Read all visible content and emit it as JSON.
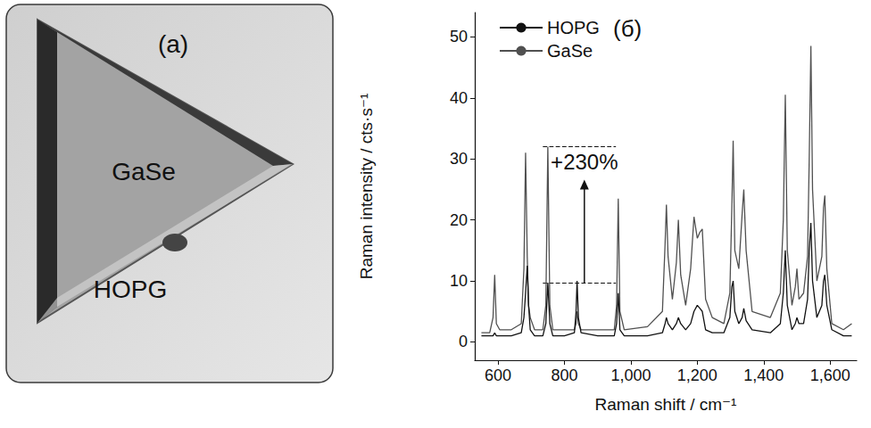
{
  "panel_a": {
    "letter": "(a)",
    "flake": "GaSe",
    "substrate": "HOPG"
  },
  "chart_data": {
    "type": "line",
    "title": "(б)",
    "x_label": "Raman shift / cm⁻¹",
    "y_label": "Raman intensity / cts·s⁻¹",
    "xlim": [
      530,
      1680
    ],
    "xticks": [
      600,
      800,
      1000,
      1200,
      1400,
      1600
    ],
    "ylim": [
      -3,
      54
    ],
    "yticks": [
      0,
      10,
      20,
      30,
      40,
      50
    ],
    "grid": false,
    "legend": "upper left",
    "x": [
      550,
      575,
      585,
      590,
      595,
      605,
      640,
      670,
      678,
      683,
      688,
      692,
      697,
      710,
      735,
      744,
      750,
      756,
      765,
      800,
      830,
      835,
      838,
      842,
      850,
      900,
      950,
      957,
      962,
      967,
      980,
      1050,
      1095,
      1103,
      1107,
      1112,
      1125,
      1137,
      1143,
      1150,
      1165,
      1180,
      1190,
      1200,
      1208,
      1215,
      1225,
      1245,
      1280,
      1298,
      1304,
      1308,
      1313,
      1325,
      1335,
      1340,
      1347,
      1365,
      1420,
      1450,
      1459,
      1465,
      1471,
      1485,
      1495,
      1500,
      1506,
      1520,
      1532,
      1537,
      1542,
      1547,
      1560,
      1575,
      1580,
      1584,
      1590,
      1605,
      1640,
      1665
    ],
    "series": [
      {
        "name": "HOPG",
        "color": "#111111",
        "values": [
          1,
          1,
          1,
          1.5,
          1,
          1,
          1,
          1.5,
          4,
          8,
          12.5,
          6,
          2,
          1,
          1,
          3,
          9.7,
          3,
          1,
          1,
          1.5,
          5,
          10,
          4,
          1.5,
          1,
          1,
          3,
          8,
          2,
          1,
          1,
          1.5,
          3,
          4,
          3,
          2,
          3,
          4,
          3,
          2,
          3,
          5,
          6,
          5.5,
          5,
          2,
          1.5,
          1.5,
          4,
          9,
          10,
          5,
          3,
          4,
          5.5,
          3.5,
          2,
          1.5,
          3,
          8,
          15,
          6,
          2,
          3,
          4,
          3,
          3,
          7,
          15,
          19.5,
          10,
          4,
          6,
          10,
          11,
          6,
          2,
          1,
          1
        ]
      },
      {
        "name": "GaSe",
        "color": "#505050",
        "values": [
          1.5,
          1.5,
          4,
          11,
          3,
          2,
          2,
          3,
          12,
          31,
          14,
          6,
          4,
          2,
          2,
          6,
          32,
          6,
          2,
          2,
          2,
          3,
          5,
          3,
          2,
          2,
          2,
          6,
          23.5,
          5,
          2,
          2.5,
          5,
          16,
          22.5,
          14,
          7,
          13,
          20,
          11,
          6,
          12,
          20.5,
          17,
          18,
          18.5,
          7,
          4,
          3,
          8,
          22,
          33,
          15,
          12,
          21,
          25,
          15,
          5,
          4,
          8,
          20,
          40.5,
          15,
          6,
          9,
          12,
          7,
          8,
          14,
          30,
          48.5,
          25,
          10,
          14,
          22,
          24,
          12,
          3,
          2,
          3
        ]
      }
    ],
    "annotations": [
      {
        "text": "+230%",
        "x": 860,
        "from": 9.7,
        "to": 32,
        "x_range": [
          735,
          955
        ]
      }
    ]
  }
}
